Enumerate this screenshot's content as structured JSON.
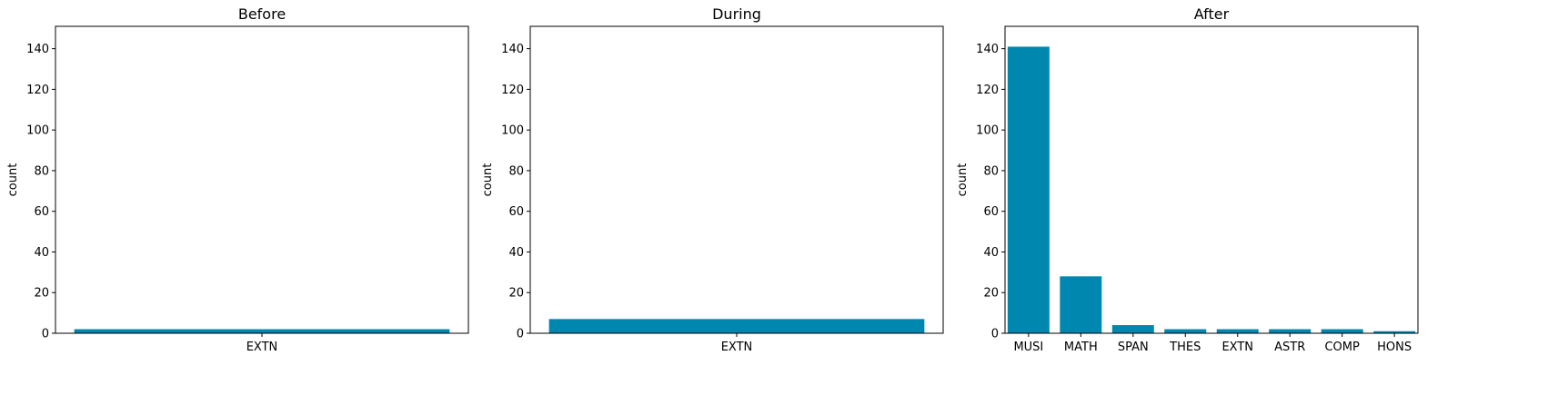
{
  "colors": {
    "bar": "#0087af",
    "axis": "#000000",
    "background": "#ffffff"
  },
  "chart_data": [
    {
      "type": "bar",
      "title": "Before",
      "ylabel": "count",
      "xlabel": "",
      "ylim": [
        0,
        151
      ],
      "yticks": [
        0,
        20,
        40,
        60,
        80,
        100,
        120,
        140
      ],
      "grid": false,
      "categories": [
        "EXTN"
      ],
      "values": [
        2
      ]
    },
    {
      "type": "bar",
      "title": "During",
      "ylabel": "count",
      "xlabel": "",
      "ylim": [
        0,
        151
      ],
      "yticks": [
        0,
        20,
        40,
        60,
        80,
        100,
        120,
        140
      ],
      "grid": false,
      "categories": [
        "EXTN"
      ],
      "values": [
        7
      ]
    },
    {
      "type": "bar",
      "title": "After",
      "ylabel": "count",
      "xlabel": "",
      "ylim": [
        0,
        151
      ],
      "yticks": [
        0,
        20,
        40,
        60,
        80,
        100,
        120,
        140
      ],
      "grid": false,
      "categories": [
        "MUSI",
        "MATH",
        "SPAN",
        "THES",
        "EXTN",
        "ASTR",
        "COMP",
        "HONS"
      ],
      "values": [
        141,
        28,
        4,
        2,
        2,
        2,
        2,
        1
      ]
    }
  ]
}
